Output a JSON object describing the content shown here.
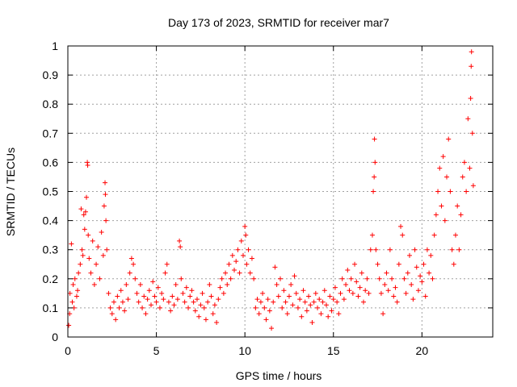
{
  "chart_data": {
    "type": "scatter",
    "title": "Day 173 of 2023, SRMTID for receiver mar7",
    "xlabel": "GPS time / hours",
    "ylabel": "SRMTID / TECUs",
    "xlim": [
      0,
      24
    ],
    "ylim": [
      0,
      1
    ],
    "xticks": [
      0,
      5,
      10,
      15,
      20
    ],
    "yticks": [
      0,
      0.1,
      0.2,
      0.3,
      0.4,
      0.5,
      0.6,
      0.7,
      0.8,
      0.9,
      1
    ],
    "grid": true,
    "marker": "+",
    "color": "#ff0000",
    "series": [
      {
        "name": "SRMTID",
        "points": [
          [
            0.05,
            0.04
          ],
          [
            0.1,
            0.08
          ],
          [
            0.12,
            0.15
          ],
          [
            0.2,
            0.32
          ],
          [
            0.25,
            0.12
          ],
          [
            0.3,
            0.18
          ],
          [
            0.35,
            0.1
          ],
          [
            0.4,
            0.2
          ],
          [
            0.5,
            0.14
          ],
          [
            0.55,
            0.16
          ],
          [
            0.6,
            0.22
          ],
          [
            0.7,
            0.25
          ],
          [
            0.75,
            0.44
          ],
          [
            0.8,
            0.3
          ],
          [
            0.85,
            0.28
          ],
          [
            0.9,
            0.42
          ],
          [
            0.95,
            0.37
          ],
          [
            1.0,
            0.43
          ],
          [
            1.05,
            0.48
          ],
          [
            1.1,
            0.6
          ],
          [
            1.12,
            0.59
          ],
          [
            1.15,
            0.35
          ],
          [
            1.2,
            0.27
          ],
          [
            1.3,
            0.22
          ],
          [
            1.4,
            0.33
          ],
          [
            1.5,
            0.18
          ],
          [
            1.6,
            0.25
          ],
          [
            1.7,
            0.31
          ],
          [
            1.8,
            0.2
          ],
          [
            1.9,
            0.36
          ],
          [
            2.0,
            0.28
          ],
          [
            2.05,
            0.45
          ],
          [
            2.1,
            0.53
          ],
          [
            2.12,
            0.49
          ],
          [
            2.15,
            0.4
          ],
          [
            2.2,
            0.3
          ],
          [
            2.3,
            0.15
          ],
          [
            2.4,
            0.1
          ],
          [
            2.5,
            0.08
          ],
          [
            2.6,
            0.12
          ],
          [
            2.7,
            0.06
          ],
          [
            2.8,
            0.14
          ],
          [
            2.9,
            0.1
          ],
          [
            3.0,
            0.16
          ],
          [
            3.1,
            0.12
          ],
          [
            3.2,
            0.09
          ],
          [
            3.3,
            0.18
          ],
          [
            3.4,
            0.13
          ],
          [
            3.5,
            0.22
          ],
          [
            3.6,
            0.27
          ],
          [
            3.7,
            0.25
          ],
          [
            3.8,
            0.2
          ],
          [
            3.9,
            0.15
          ],
          [
            4.0,
            0.12
          ],
          [
            4.1,
            0.18
          ],
          [
            4.2,
            0.1
          ],
          [
            4.3,
            0.14
          ],
          [
            4.4,
            0.08
          ],
          [
            4.5,
            0.13
          ],
          [
            4.6,
            0.16
          ],
          [
            4.7,
            0.11
          ],
          [
            4.8,
            0.19
          ],
          [
            4.9,
            0.14
          ],
          [
            5.0,
            0.12
          ],
          [
            5.1,
            0.17
          ],
          [
            5.2,
            0.1
          ],
          [
            5.3,
            0.15
          ],
          [
            5.4,
            0.13
          ],
          [
            5.5,
            0.22
          ],
          [
            5.6,
            0.25
          ],
          [
            5.7,
            0.12
          ],
          [
            5.8,
            0.09
          ],
          [
            5.9,
            0.14
          ],
          [
            6.0,
            0.11
          ],
          [
            6.1,
            0.18
          ],
          [
            6.2,
            0.13
          ],
          [
            6.3,
            0.33
          ],
          [
            6.35,
            0.31
          ],
          [
            6.4,
            0.2
          ],
          [
            6.5,
            0.15
          ],
          [
            6.6,
            0.12
          ],
          [
            6.7,
            0.17
          ],
          [
            6.8,
            0.1
          ],
          [
            6.9,
            0.14
          ],
          [
            7.0,
            0.16
          ],
          [
            7.1,
            0.12
          ],
          [
            7.2,
            0.09
          ],
          [
            7.3,
            0.13
          ],
          [
            7.4,
            0.07
          ],
          [
            7.5,
            0.11
          ],
          [
            7.6,
            0.15
          ],
          [
            7.7,
            0.1
          ],
          [
            7.8,
            0.06
          ],
          [
            7.9,
            0.12
          ],
          [
            8.0,
            0.18
          ],
          [
            8.1,
            0.14
          ],
          [
            8.2,
            0.08
          ],
          [
            8.3,
            0.11
          ],
          [
            8.4,
            0.05
          ],
          [
            8.5,
            0.13
          ],
          [
            8.6,
            0.17
          ],
          [
            8.7,
            0.2
          ],
          [
            8.8,
            0.15
          ],
          [
            8.9,
            0.22
          ],
          [
            9.0,
            0.18
          ],
          [
            9.1,
            0.25
          ],
          [
            9.2,
            0.2
          ],
          [
            9.3,
            0.28
          ],
          [
            9.4,
            0.23
          ],
          [
            9.5,
            0.26
          ],
          [
            9.6,
            0.3
          ],
          [
            9.7,
            0.22
          ],
          [
            9.8,
            0.33
          ],
          [
            9.9,
            0.28
          ],
          [
            10.0,
            0.38
          ],
          [
            10.05,
            0.35
          ],
          [
            10.1,
            0.25
          ],
          [
            10.2,
            0.3
          ],
          [
            10.3,
            0.22
          ],
          [
            10.4,
            0.27
          ],
          [
            10.5,
            0.2
          ],
          [
            10.6,
            0.1
          ],
          [
            10.7,
            0.13
          ],
          [
            10.8,
            0.08
          ],
          [
            10.9,
            0.12
          ],
          [
            11.0,
            0.15
          ],
          [
            11.1,
            0.1
          ],
          [
            11.2,
            0.06
          ],
          [
            11.3,
            0.13
          ],
          [
            11.4,
            0.09
          ],
          [
            11.5,
            0.03
          ],
          [
            11.6,
            0.12
          ],
          [
            11.7,
            0.24
          ],
          [
            11.8,
            0.18
          ],
          [
            11.9,
            0.14
          ],
          [
            12.0,
            0.2
          ],
          [
            12.1,
            0.1
          ],
          [
            12.2,
            0.16
          ],
          [
            12.3,
            0.12
          ],
          [
            12.4,
            0.08
          ],
          [
            12.5,
            0.14
          ],
          [
            12.6,
            0.18
          ],
          [
            12.7,
            0.11
          ],
          [
            12.8,
            0.21
          ],
          [
            12.9,
            0.15
          ],
          [
            13.0,
            0.1
          ],
          [
            13.1,
            0.13
          ],
          [
            13.2,
            0.07
          ],
          [
            13.3,
            0.16
          ],
          [
            13.4,
            0.12
          ],
          [
            13.5,
            0.09
          ],
          [
            13.6,
            0.14
          ],
          [
            13.7,
            0.11
          ],
          [
            13.8,
            0.05
          ],
          [
            13.9,
            0.12
          ],
          [
            14.0,
            0.15
          ],
          [
            14.1,
            0.1
          ],
          [
            14.2,
            0.13
          ],
          [
            14.3,
            0.08
          ],
          [
            14.4,
            0.12
          ],
          [
            14.5,
            0.16
          ],
          [
            14.6,
            0.11
          ],
          [
            14.7,
            0.07
          ],
          [
            14.8,
            0.14
          ],
          [
            14.9,
            0.09
          ],
          [
            15.0,
            0.13
          ],
          [
            15.1,
            0.17
          ],
          [
            15.2,
            0.12
          ],
          [
            15.3,
            0.08
          ],
          [
            15.4,
            0.15
          ],
          [
            15.5,
            0.2
          ],
          [
            15.6,
            0.13
          ],
          [
            15.7,
            0.18
          ],
          [
            15.8,
            0.23
          ],
          [
            15.9,
            0.16
          ],
          [
            16.0,
            0.2
          ],
          [
            16.1,
            0.15
          ],
          [
            16.2,
            0.25
          ],
          [
            16.3,
            0.19
          ],
          [
            16.4,
            0.14
          ],
          [
            16.5,
            0.17
          ],
          [
            16.6,
            0.22
          ],
          [
            16.7,
            0.12
          ],
          [
            16.8,
            0.16
          ],
          [
            16.9,
            0.2
          ],
          [
            17.0,
            0.15
          ],
          [
            17.1,
            0.3
          ],
          [
            17.2,
            0.35
          ],
          [
            17.25,
            0.5
          ],
          [
            17.3,
            0.55
          ],
          [
            17.32,
            0.68
          ],
          [
            17.35,
            0.6
          ],
          [
            17.4,
            0.3
          ],
          [
            17.5,
            0.25
          ],
          [
            17.6,
            0.2
          ],
          [
            17.7,
            0.15
          ],
          [
            17.8,
            0.08
          ],
          [
            17.9,
            0.18
          ],
          [
            18.0,
            0.22
          ],
          [
            18.1,
            0.16
          ],
          [
            18.2,
            0.3
          ],
          [
            18.3,
            0.2
          ],
          [
            18.4,
            0.14
          ],
          [
            18.5,
            0.17
          ],
          [
            18.6,
            0.12
          ],
          [
            18.7,
            0.25
          ],
          [
            18.8,
            0.38
          ],
          [
            18.9,
            0.35
          ],
          [
            19.0,
            0.2
          ],
          [
            19.1,
            0.15
          ],
          [
            19.2,
            0.22
          ],
          [
            19.3,
            0.28
          ],
          [
            19.4,
            0.18
          ],
          [
            19.5,
            0.13
          ],
          [
            19.6,
            0.3
          ],
          [
            19.7,
            0.24
          ],
          [
            19.8,
            0.16
          ],
          [
            19.9,
            0.21
          ],
          [
            20.0,
            0.19
          ],
          [
            20.1,
            0.25
          ],
          [
            20.2,
            0.14
          ],
          [
            20.3,
            0.3
          ],
          [
            20.4,
            0.22
          ],
          [
            20.5,
            0.28
          ],
          [
            20.6,
            0.2
          ],
          [
            20.7,
            0.35
          ],
          [
            20.8,
            0.42
          ],
          [
            20.9,
            0.5
          ],
          [
            21.0,
            0.58
          ],
          [
            21.1,
            0.45
          ],
          [
            21.2,
            0.62
          ],
          [
            21.3,
            0.4
          ],
          [
            21.4,
            0.55
          ],
          [
            21.5,
            0.68
          ],
          [
            21.6,
            0.5
          ],
          [
            21.7,
            0.3
          ],
          [
            21.8,
            0.25
          ],
          [
            21.9,
            0.35
          ],
          [
            22.0,
            0.45
          ],
          [
            22.1,
            0.3
          ],
          [
            22.2,
            0.42
          ],
          [
            22.3,
            0.55
          ],
          [
            22.4,
            0.6
          ],
          [
            22.5,
            0.5
          ],
          [
            22.6,
            0.75
          ],
          [
            22.7,
            0.58
          ],
          [
            22.75,
            0.82
          ],
          [
            22.78,
            0.93
          ],
          [
            22.8,
            0.98
          ],
          [
            22.85,
            0.7
          ],
          [
            22.9,
            0.52
          ]
        ]
      }
    ]
  }
}
